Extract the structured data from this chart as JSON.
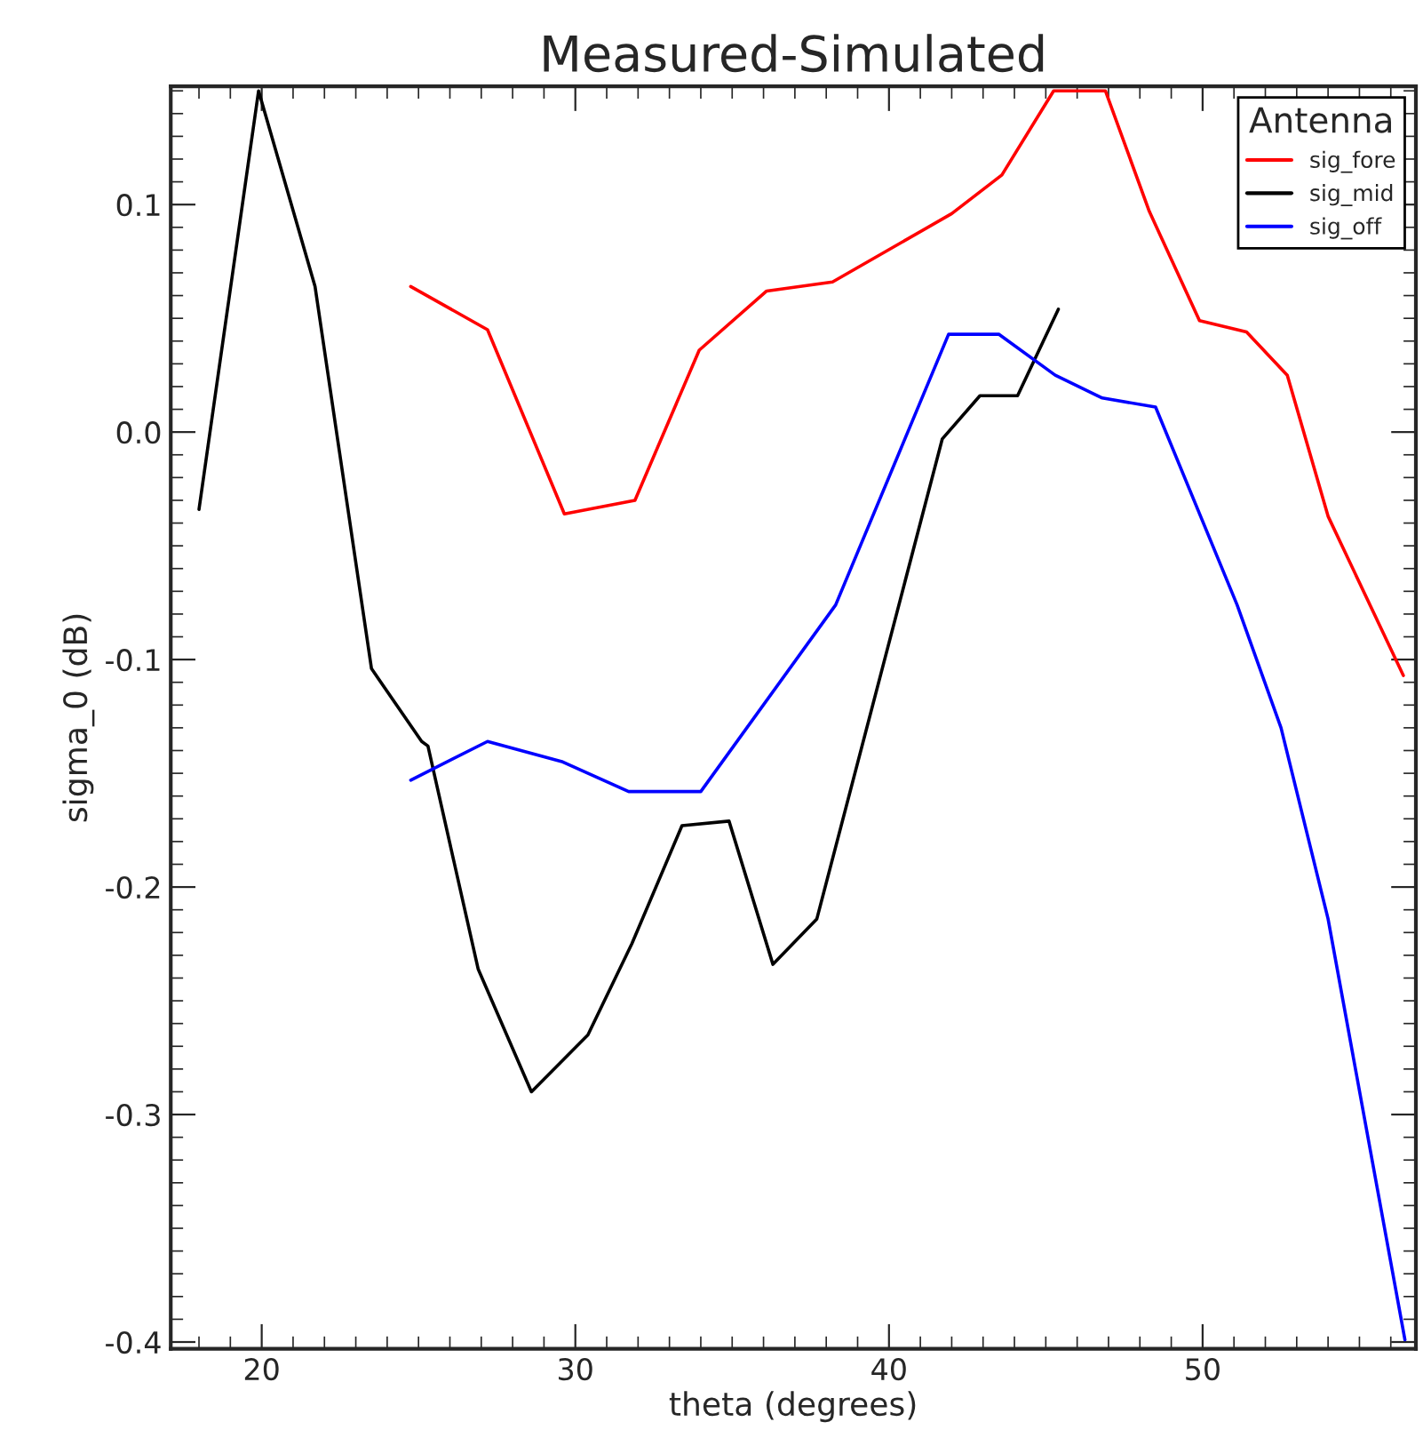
{
  "chart_data": {
    "type": "line",
    "title": "Measured-Simulated",
    "xlabel": "theta (degrees)",
    "ylabel": "sigma_0 (dB)",
    "legend_title": "Antenna",
    "xlim": [
      17.1,
      56.8
    ],
    "xticks": [
      20,
      30,
      40,
      50
    ],
    "ylim": [
      -0.403,
      0.152
    ],
    "yticks": [
      -0.4,
      -0.3,
      -0.2,
      -0.1,
      {
        "value": 0,
        "label": "0.0"
      },
      0.1
    ],
    "grid": false,
    "legend": "top right",
    "marker": "none",
    "line_style": "solid",
    "series": [
      {
        "name": "sig_fore",
        "color": "#ff0000",
        "x": [
          24.75,
          27.2,
          29.65,
          31.9,
          33.95,
          36.1,
          38.2,
          42.0,
          43.6,
          45.25,
          46.9,
          48.3,
          49.9,
          51.4,
          52.7,
          54.0,
          56.4
        ],
        "values": [
          0.064,
          0.045,
          -0.036,
          -0.03,
          0.036,
          0.062,
          0.066,
          0.096,
          0.113,
          0.15,
          0.15,
          0.097,
          0.049,
          0.044,
          0.025,
          -0.037,
          -0.107
        ]
      },
      {
        "name": "sig_mid",
        "color": "#000000",
        "x": [
          18.0,
          19.9,
          21.7,
          23.5,
          25.1,
          25.3,
          26.9,
          28.6,
          30.4,
          31.8,
          33.4,
          34.9,
          36.3,
          37.7,
          41.7,
          42.9,
          44.1,
          45.4
        ],
        "values": [
          -0.034,
          0.15,
          0.064,
          -0.104,
          -0.136,
          -0.138,
          -0.236,
          -0.29,
          -0.265,
          -0.225,
          -0.173,
          -0.171,
          -0.234,
          -0.214,
          -0.003,
          0.016,
          0.016,
          0.054
        ]
      },
      {
        "name": "sig_off",
        "color": "#0000ff",
        "x": [
          24.75,
          27.2,
          29.6,
          31.7,
          34.0,
          38.3,
          41.9,
          43.5,
          45.3,
          46.8,
          48.5,
          51.1,
          52.5,
          54.0,
          56.45
        ],
        "values": [
          -0.153,
          -0.136,
          -0.145,
          -0.158,
          -0.158,
          -0.076,
          0.043,
          0.043,
          0.025,
          0.015,
          0.011,
          -0.076,
          -0.13,
          -0.214,
          -0.399
        ]
      }
    ]
  }
}
